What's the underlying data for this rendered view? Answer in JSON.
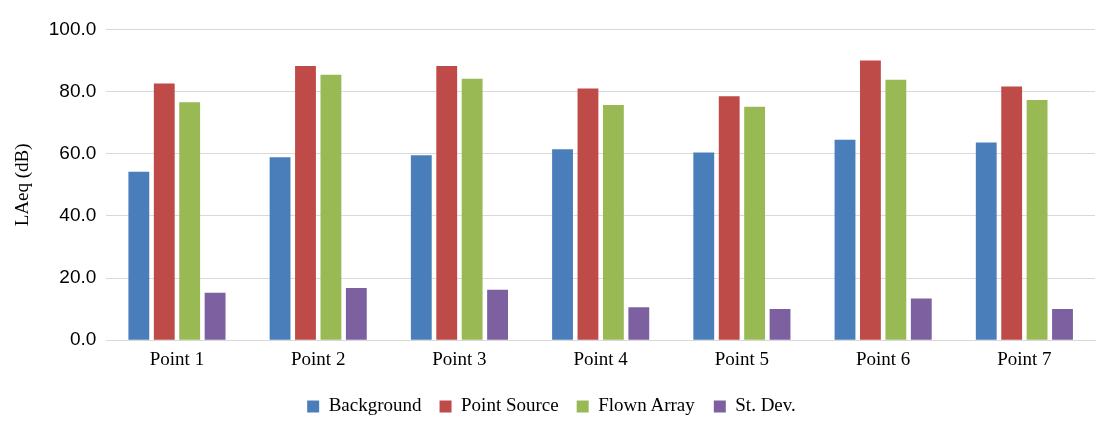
{
  "chart_data": {
    "type": "bar",
    "ylabel": "LAeq (dB)",
    "categories": [
      "Point 1",
      "Point 2",
      "Point 3",
      "Point 4",
      "Point 5",
      "Point 6",
      "Point 7"
    ],
    "series": [
      {
        "name": "Background",
        "color": "#4a7ebb",
        "values": [
          54.2,
          58.9,
          59.5,
          61.4,
          60.4,
          64.5,
          63.6
        ]
      },
      {
        "name": "Point Source",
        "color": "#be4b48",
        "values": [
          82.6,
          88.2,
          88.2,
          81.0,
          78.5,
          90.0,
          81.6
        ]
      },
      {
        "name": "Flown Array",
        "color": "#98b954",
        "values": [
          76.6,
          85.4,
          84.1,
          75.7,
          75.1,
          83.8,
          77.3
        ]
      },
      {
        "name": "St. Dev.",
        "color": "#7d60a0",
        "values": [
          15.3,
          16.8,
          16.2,
          10.6,
          10.0,
          13.4,
          10.0
        ]
      }
    ],
    "ylim": [
      0,
      100
    ],
    "yticks": [
      {
        "value": 0,
        "label": "0.0"
      },
      {
        "value": 20,
        "label": "20.0"
      },
      {
        "value": 40,
        "label": "40.0"
      },
      {
        "value": 60,
        "label": "60.0"
      },
      {
        "value": 80,
        "label": "80.0"
      },
      {
        "value": 100,
        "label": "100.0"
      }
    ],
    "grid": "y",
    "legend": "bottom"
  }
}
